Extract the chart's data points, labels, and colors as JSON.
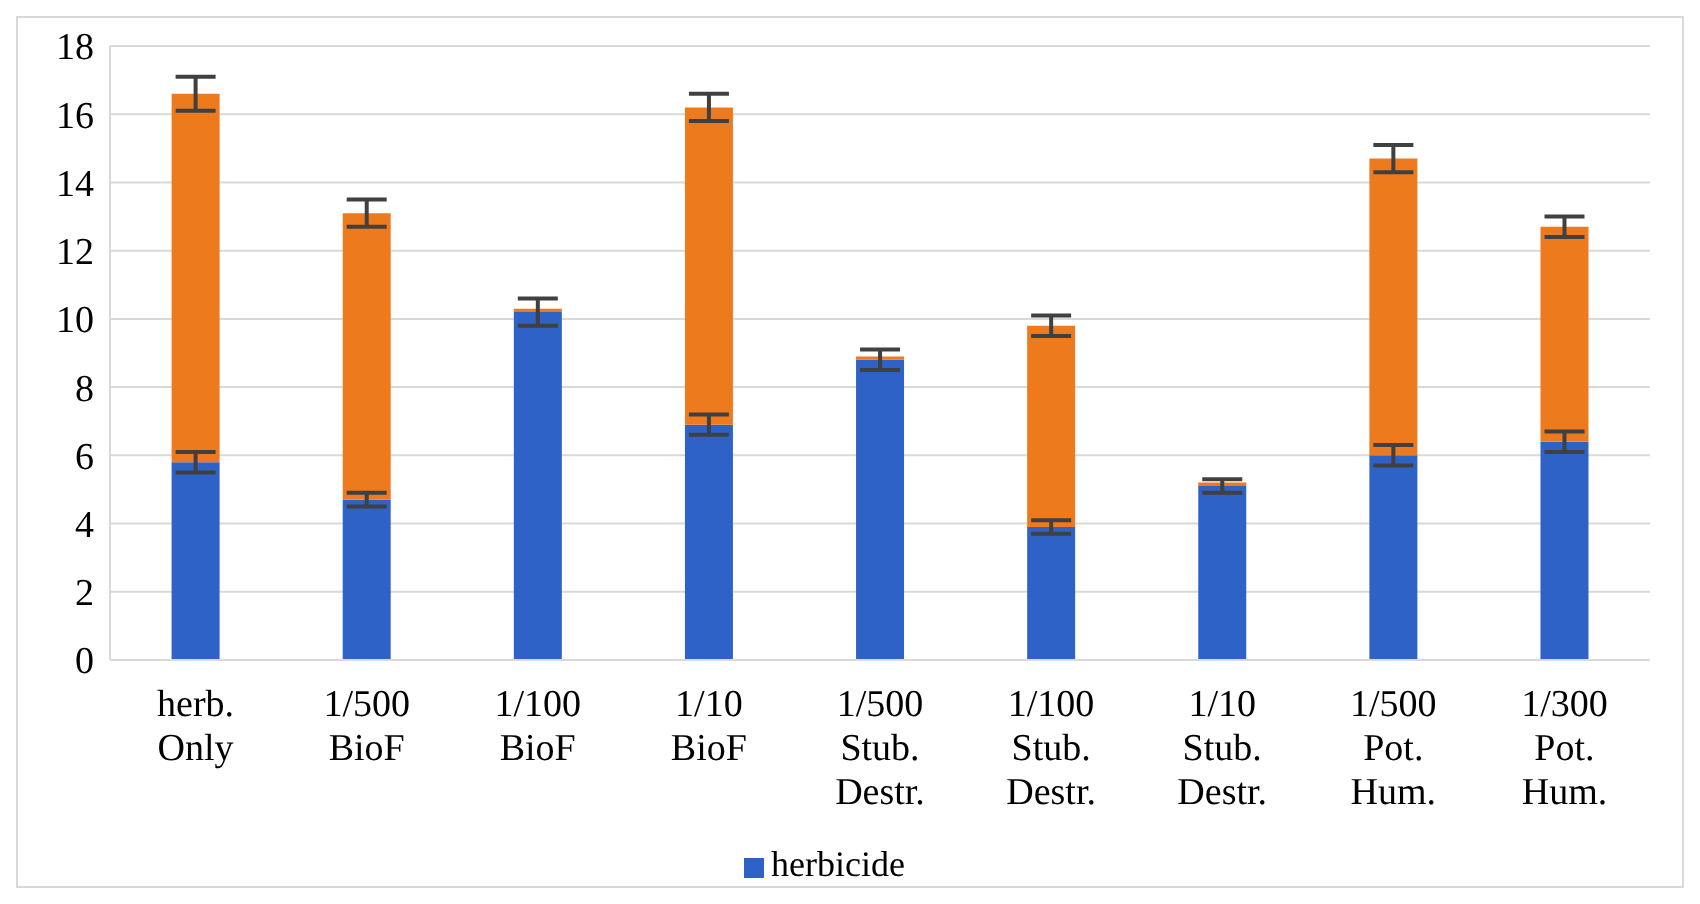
{
  "chart_data": {
    "type": "bar",
    "stacked": true,
    "categories": [
      "herb. Only",
      "1/500 BioF",
      "1/100 BioF",
      "1/10 BioF",
      "1/500 Stub. Destr.",
      "1/100 Stub. Destr.",
      "1/10 Stub. Destr.",
      "1/500 Pot. Hum.",
      "1/300 Pot. Hum."
    ],
    "series": [
      {
        "name": "herbicide",
        "color": "#2e62c6",
        "values": [
          5.8,
          4.7,
          10.2,
          6.9,
          8.8,
          3.9,
          5.1,
          6.0,
          6.4
        ],
        "errors": [
          0.3,
          0.2,
          0.4,
          0.3,
          0.3,
          0.2,
          0.2,
          0.3,
          0.3
        ]
      },
      {
        "color": "#ee7a1e",
        "values": [
          10.8,
          8.4,
          0.1,
          9.3,
          0.1,
          5.9,
          0.1,
          8.7,
          6.3
        ],
        "errors": [
          0.5,
          0.4,
          null,
          0.4,
          null,
          0.3,
          null,
          0.4,
          0.3
        ]
      }
    ],
    "ylim": [
      0,
      18
    ],
    "yticks": [
      0,
      2,
      4,
      6,
      8,
      10,
      12,
      14,
      16,
      18
    ],
    "grid": "y",
    "legend": "bottom"
  }
}
